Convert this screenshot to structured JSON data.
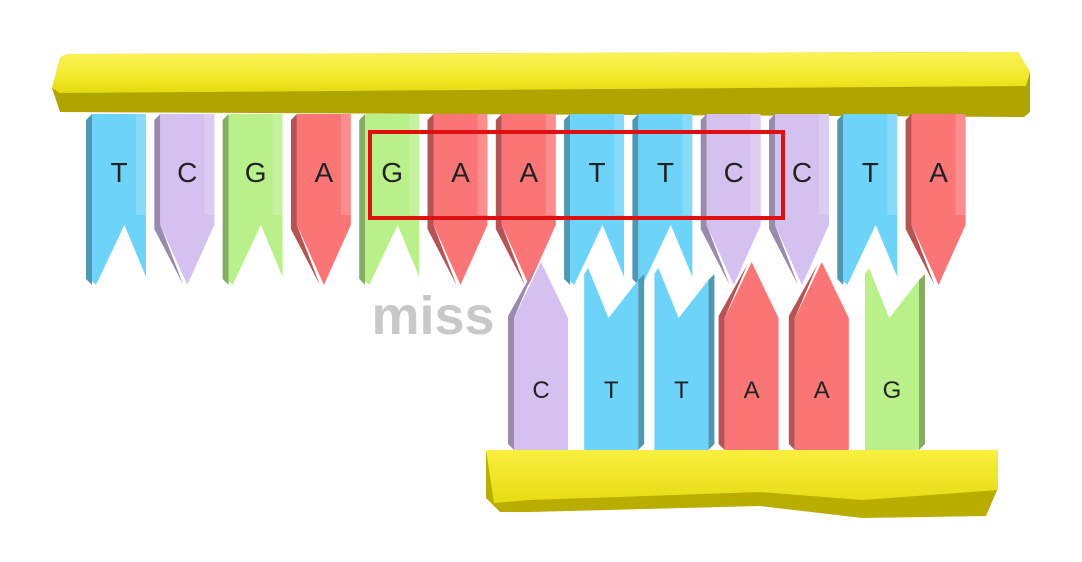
{
  "top_strand": [
    "T",
    "C",
    "G",
    "A",
    "G",
    "A",
    "A",
    "T",
    "T",
    "C",
    "C",
    "T",
    "A"
  ],
  "bottom_strand": [
    "C",
    "T",
    "T",
    "A",
    "A",
    "G"
  ],
  "annotation": "miss",
  "colors": {
    "backbone": "#f2e928",
    "backbone_dark": "#b7ab00",
    "A": "#fa7575",
    "T": "#6dd3f8",
    "C": "#d5c1f0",
    "G": "#b9f08a",
    "highlight": "#e01010",
    "annotation": "#c8c8c8"
  }
}
